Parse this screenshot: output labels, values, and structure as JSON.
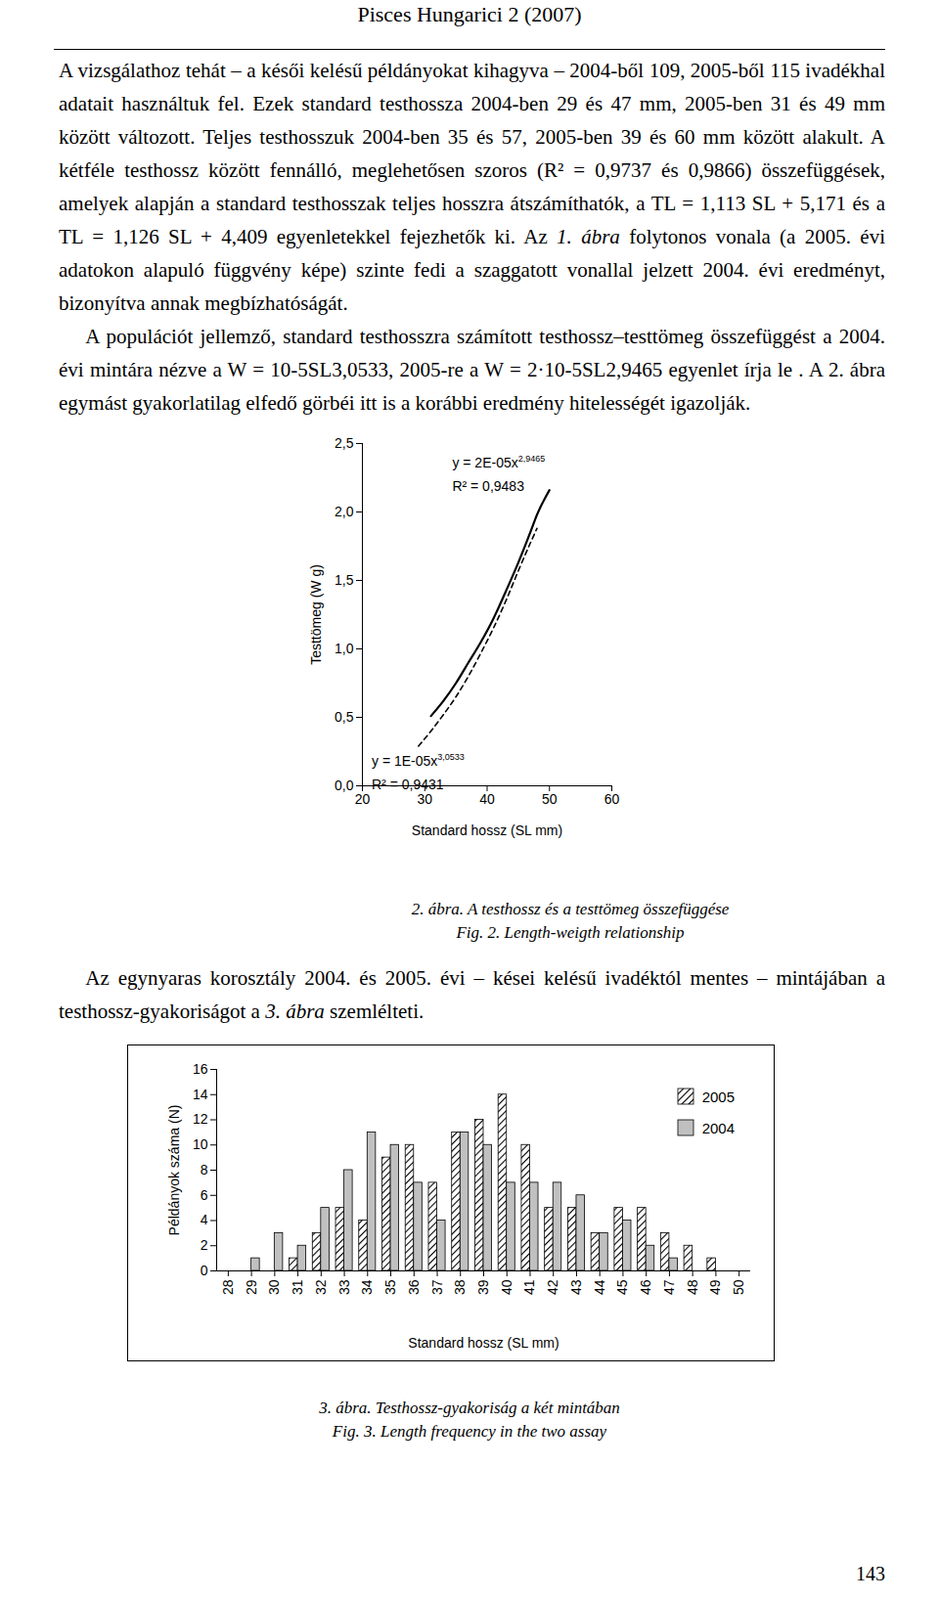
{
  "header": "Pisces Hungarici 2 (2007)",
  "page_number": "143",
  "paragraphs": [
    [
      "A vizsgálathoz tehát – a késői kelésű példányokat kihagyva – 2004-ből 109, 2005-ből 115 ivadékhal adatait használtuk fel. Ezek standard testhossza 2004-ben 29 és 47 mm, 2005-ben 31 és 49 mm között változott. Teljes testhosszuk 2004-ben 35 és 57, 2005-ben 39 és 60 mm között alakult. A kétféle testhossz között fennálló, meglehetősen szoros (R² = 0,9737 és 0,9866) összefüggések, amelyek alapján a standard testhosszak teljes hosszra átszámíthatók, a TL = 1,113 SL + 5,171 és a TL = 1,126 SL + 4,409 egyenletekkel fejezhetők ki. Az ",
      {
        "text": "1. ábra",
        "italic": true
      },
      " folytonos vonala (a 2005. évi adatokon alapuló függvény képe) szinte fedi a szaggatott vonallal jelzett 2004. évi eredményt, bizonyítva annak megbízhatóságát."
    ],
    [
      "A populációt jellemző, standard testhosszra számított testhossz–testtömeg összefüggést a 2004. évi mintára nézve a W = 10-5SL3,0533, 2005-re a W = 2·10-5SL2,9465 egyenlet írja le . A 2. ábra egymást gyakorlatilag elfedő görbéi itt is a korábbi eredmény hitelességét igazolják."
    ],
    [
      "Az egynyaras korosztály 2004. és 2005. évi – kései kelésű ivadéktól mentes – mintájában a testhossz-gyakoriságot a ",
      {
        "text": "3. ábra",
        "italic": true
      },
      " szemlélteti."
    ]
  ],
  "chart_data": [
    {
      "type": "line",
      "title": "2. ábra. A testhossz és a testtömeg összefüggése",
      "subtitle": "Fig. 2. Length-weigth relationship",
      "x_label": "Standard hossz (SL mm)",
      "y_label": "Testtömeg (W g)",
      "x": [
        29,
        31,
        33,
        35,
        37,
        39,
        41,
        43,
        45,
        47,
        48,
        50
      ],
      "series": [
        {
          "color": "#000000",
          "line_style": "dashed",
          "values": [
            0.29,
            0.4,
            0.52,
            0.65,
            0.8,
            0.97,
            1.15,
            1.35,
            1.57,
            1.78,
            1.88,
            null
          ],
          "annotation": {
            "text": "y = 1E-05x",
            "superscript": "3,0533",
            "r2": "R² = 0,9431"
          }
        },
        {
          "color": "#000000",
          "line_style": "solid",
          "values": [
            null,
            0.51,
            0.62,
            0.75,
            0.9,
            1.05,
            1.22,
            1.42,
            1.63,
            1.86,
            1.98,
            2.16
          ],
          "annotation": {
            "text": "y = 2E-05x",
            "superscript": "2,9465",
            "r2": "R² = 0,9483"
          }
        }
      ],
      "xlim": [
        20,
        60
      ],
      "xticks": [
        20,
        30,
        40,
        50,
        60
      ],
      "ylim": [
        0,
        2.5
      ],
      "yticks": [
        {
          "value": 0,
          "label": "0,0"
        },
        {
          "value": 0.5,
          "label": "0,5"
        },
        {
          "value": 1,
          "label": "1,0"
        },
        {
          "value": 1.5,
          "label": "1,5"
        },
        {
          "value": 2,
          "label": "2,0"
        },
        {
          "value": 2.5,
          "label": "2,5"
        }
      ],
      "grid": false
    },
    {
      "type": "bar",
      "title": "3. ábra. Testhossz-gyakoriság a két mintában",
      "subtitle": "Fig. 3. Length frequency in the two assay",
      "x_label": "Standard hossz (SL mm)",
      "y_label": "Példányok száma (N)",
      "categories": [
        28,
        29,
        30,
        31,
        32,
        33,
        34,
        35,
        36,
        37,
        38,
        39,
        40,
        41,
        42,
        43,
        44,
        45,
        46,
        47,
        48,
        49,
        50
      ],
      "series": [
        {
          "name": "2005",
          "color": "#000000",
          "marker": "hatched",
          "values": [
            0,
            0,
            0,
            1,
            3,
            5,
            4,
            9,
            10,
            7,
            11,
            12,
            14,
            10,
            5,
            5,
            3,
            5,
            5,
            3,
            2,
            1,
            0
          ]
        },
        {
          "name": "2004",
          "color": "#c0c0c0",
          "values": [
            0,
            1,
            3,
            2,
            5,
            8,
            11,
            10,
            7,
            4,
            11,
            10,
            7,
            7,
            7,
            6,
            3,
            4,
            2,
            1,
            0,
            0,
            0
          ]
        }
      ],
      "ylim": [
        0,
        16
      ],
      "yticks": [
        0,
        2,
        4,
        6,
        8,
        10,
        12,
        14,
        16
      ],
      "legend": "top-right",
      "grid": false
    }
  ]
}
